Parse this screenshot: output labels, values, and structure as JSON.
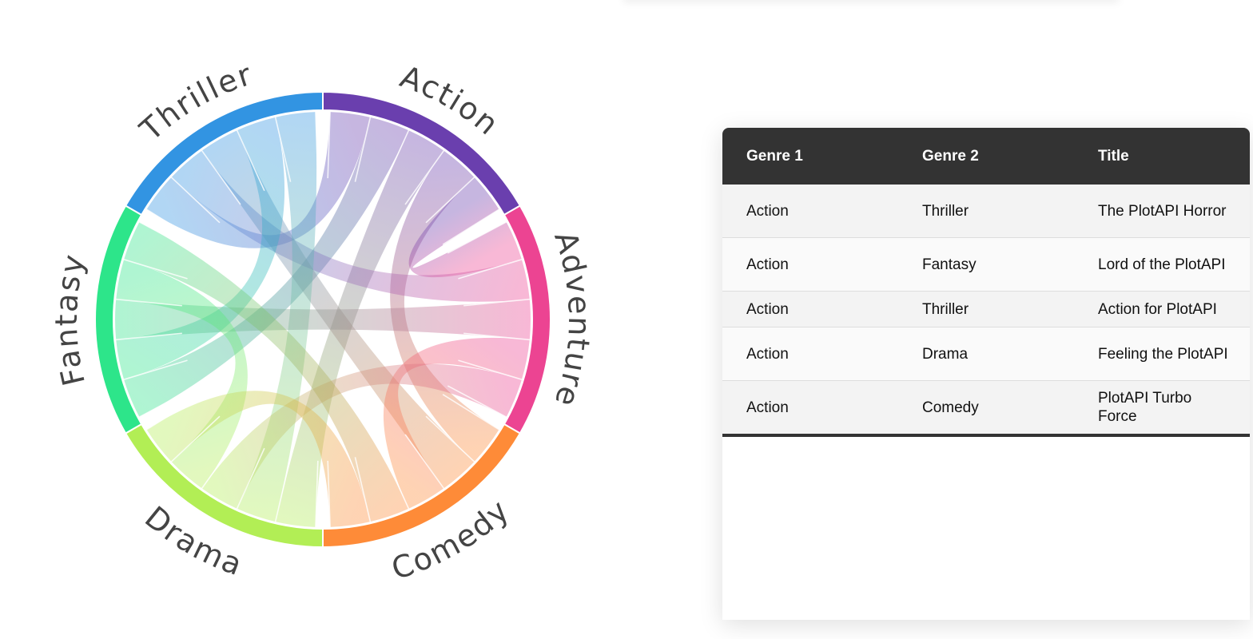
{
  "chart_data": {
    "type": "chord",
    "groups": [
      {
        "name": "Action",
        "color": "#6a3fae"
      },
      {
        "name": "Adventure",
        "color": "#ec4492"
      },
      {
        "name": "Comedy",
        "color": "#fe8b38"
      },
      {
        "name": "Drama",
        "color": "#b2ee55"
      },
      {
        "name": "Fantasy",
        "color": "#2de58a"
      },
      {
        "name": "Thriller",
        "color": "#3294e2"
      }
    ],
    "links": [
      [
        "Action",
        "Thriller"
      ],
      [
        "Action",
        "Fantasy"
      ],
      [
        "Action",
        "Drama"
      ],
      [
        "Action",
        "Comedy"
      ],
      [
        "Action",
        "Adventure"
      ],
      [
        "Thriller",
        "Adventure"
      ],
      [
        "Thriller",
        "Comedy"
      ],
      [
        "Thriller",
        "Fantasy"
      ],
      [
        "Thriller",
        "Drama"
      ],
      [
        "Adventure",
        "Fantasy"
      ],
      [
        "Adventure",
        "Comedy"
      ],
      [
        "Adventure",
        "Drama"
      ],
      [
        "Fantasy",
        "Drama"
      ],
      [
        "Fantasy",
        "Comedy"
      ],
      [
        "Drama",
        "Comedy"
      ]
    ]
  },
  "table": {
    "headers": [
      "Genre 1",
      "Genre 2",
      "Title"
    ],
    "rows": [
      [
        "Action",
        "Thriller",
        "The PlotAPI Horror"
      ],
      [
        "Action",
        "Fantasy",
        "Lord of the PlotAPI"
      ],
      [
        "Action",
        "Thriller",
        "Action for PlotAPI"
      ],
      [
        "Action",
        "Drama",
        "Feeling the PlotAPI"
      ],
      [
        "Action",
        "Comedy",
        "PlotAPI Turbo Force"
      ]
    ]
  }
}
